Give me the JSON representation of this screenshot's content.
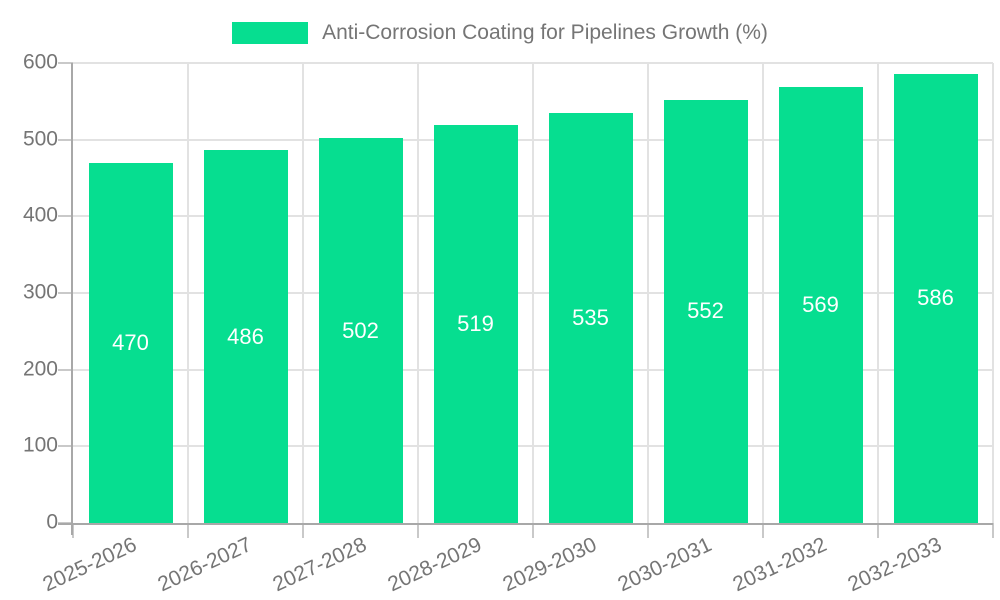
{
  "chart_data": {
    "type": "bar",
    "title": "Anti-Corrosion Coating for Pipelines Growth (%)",
    "categories": [
      "2025-2026",
      "2026-2027",
      "2027-2028",
      "2028-2029",
      "2029-2030",
      "2030-2031",
      "2031-2032",
      "2032-2033"
    ],
    "values": [
      470,
      486,
      502,
      519,
      535,
      552,
      569,
      586
    ],
    "xlabel": "",
    "ylabel": "",
    "ylim": [
      0,
      600
    ],
    "yticks": [
      0,
      100,
      200,
      300,
      400,
      500,
      600
    ],
    "grid": "horizontal and vertical gridlines on",
    "legend_position": "top-center",
    "value_labels": "white, centered vertically inside each bar",
    "colors": {
      "bar": "#06DE90",
      "bar_value_text": "#ffffff",
      "tick_text": "#757575",
      "legend_text": "#757575",
      "gridline": "#e2e2e2",
      "tick_mark": "#c9c9c9",
      "axis_line": "#a8a8a8",
      "background": "#ffffff"
    }
  }
}
